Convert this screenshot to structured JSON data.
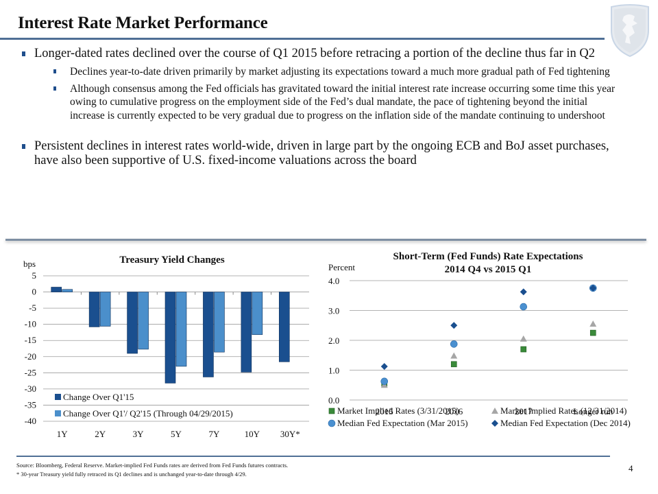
{
  "page": {
    "title": "Interest Rate Market Performance",
    "page_number": "4",
    "logo_icon": "shield-lion-crest-icon"
  },
  "bullets": {
    "b1": "Longer-dated rates declined over the course of Q1 2015 before retracing a portion of the decline thus far  in Q2",
    "b1_sub": [
      "Declines year-to-date driven primarily by market adjusting its expectations toward a much more gradual path of Fed tightening",
      "Although consensus among the Fed officials has gravitated toward the initial interest rate increase occurring some time this year owing to cumulative progress on the employment side of the Fed’s dual mandate, the pace of tightening beyond the initial increase is currently expected to be very gradual due to progress on the inflation side of the mandate continuing to undershoot"
    ],
    "b2": "Persistent declines in interest rates world-wide, driven in large part by the ongoing ECB and BoJ asset purchases, have also been supportive of U.S. fixed-income valuations across the board"
  },
  "footer": {
    "source": "Source: Bloomberg, Federal Reserve.  Market-implied Fed Funds rates are derived from Fed Funds futures contracts.",
    "note": "* 30-year Treasury yield fully retraced its Q1 declines and is unchanged year-to-date through 4/29."
  },
  "chart_data": [
    {
      "type": "bar",
      "title": "Treasury Yield Changes",
      "ylabel": "bps",
      "xlabel": "",
      "ylim": [
        -40,
        5
      ],
      "yticks": [
        5,
        0,
        -5,
        -10,
        -15,
        -20,
        -25,
        -30,
        -35,
        -40
      ],
      "grid": true,
      "legend_position": "bottom-left",
      "categories": [
        "1Y",
        "2Y",
        "3Y",
        "5Y",
        "7Y",
        "10Y",
        "30Y*"
      ],
      "series": [
        {
          "name": "Change Over Q1'15",
          "color": "#1a4f8f",
          "values": [
            1.5,
            -10.8,
            -19.0,
            -28.2,
            -26.3,
            -24.8,
            -21.6
          ]
        },
        {
          "name": "Change Over Q1'/ Q2'15 (Through 04/29/2015)",
          "color": "#4b8fcb",
          "values": [
            0.8,
            -10.6,
            -17.7,
            -23.0,
            -18.6,
            -13.2,
            0.0
          ]
        }
      ]
    },
    {
      "type": "scatter",
      "title": "Short-Term (Fed Funds) Rate Expectations",
      "subtitle": "2014 Q4 vs 2015 Q1",
      "ylabel": "Percent",
      "xlabel": "",
      "ylim": [
        0,
        4
      ],
      "yticks": [
        "4.0",
        "3.0",
        "2.0",
        "1.0",
        "0.0"
      ],
      "grid": true,
      "legend_position": "bottom",
      "categories": [
        "2015",
        "2016",
        "2017",
        "Longer run"
      ],
      "series": [
        {
          "name": "Market Implied Rates (3/31/2015)",
          "marker": "square",
          "color": "#3a8a3a",
          "values": [
            0.55,
            1.2,
            1.7,
            2.25
          ]
        },
        {
          "name": "Market Implied Rates (12/31/2014)",
          "marker": "triangle",
          "color": "#a6a6a6",
          "values": [
            0.5,
            1.48,
            2.05,
            2.55
          ]
        },
        {
          "name": "Median Fed Expectation (Mar 2015)",
          "marker": "circle",
          "color": "#4a90d0",
          "values": [
            0.625,
            1.875,
            3.125,
            3.75
          ]
        },
        {
          "name": "Median Fed Expectation (Dec 2014)",
          "marker": "diamond",
          "color": "#1a4f8f",
          "values": [
            1.125,
            2.5,
            3.625,
            3.75
          ]
        }
      ]
    }
  ]
}
